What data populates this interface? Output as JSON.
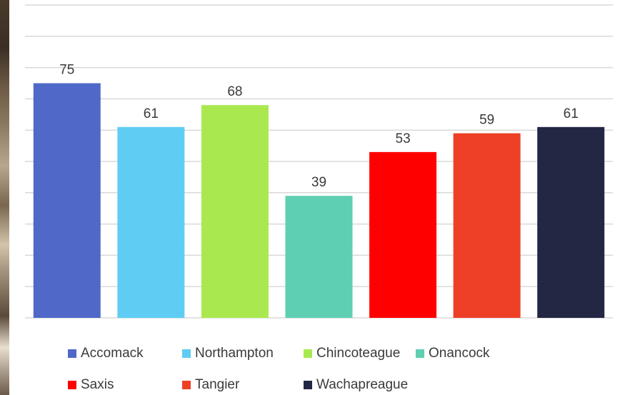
{
  "chart_data": {
    "type": "bar",
    "title": "",
    "xlabel": "",
    "ylabel": "",
    "ylim": [
      0,
      100
    ],
    "grid": true,
    "legend_position": "bottom",
    "categories": [
      "Accomack",
      "Northampton",
      "Chincoteague",
      "Onancock",
      "Saxis",
      "Tangier",
      "Wachapreague"
    ],
    "values": [
      75,
      61,
      68,
      39,
      53,
      59,
      61
    ],
    "value_labels": [
      "75",
      "61",
      "68",
      "39",
      "53",
      "59",
      "61"
    ],
    "colors": [
      "#5068c8",
      "#5fcdf3",
      "#a9e94f",
      "#5fcfb1",
      "#ff0000",
      "#ee4026",
      "#232744"
    ]
  },
  "legend": {
    "rows": [
      [
        {
          "label": "Accomack",
          "color": "#5068c8"
        },
        {
          "label": "Northampton",
          "color": "#5fcdf3"
        },
        {
          "label": "Chincoteague",
          "color": "#a9e94f"
        },
        {
          "label": "Onancock",
          "color": "#5fcfb1"
        }
      ],
      [
        {
          "label": "Saxis",
          "color": "#ff0000"
        },
        {
          "label": "Tangier",
          "color": "#ee4026"
        },
        {
          "label": "Wachapreague",
          "color": "#232744"
        }
      ]
    ]
  }
}
